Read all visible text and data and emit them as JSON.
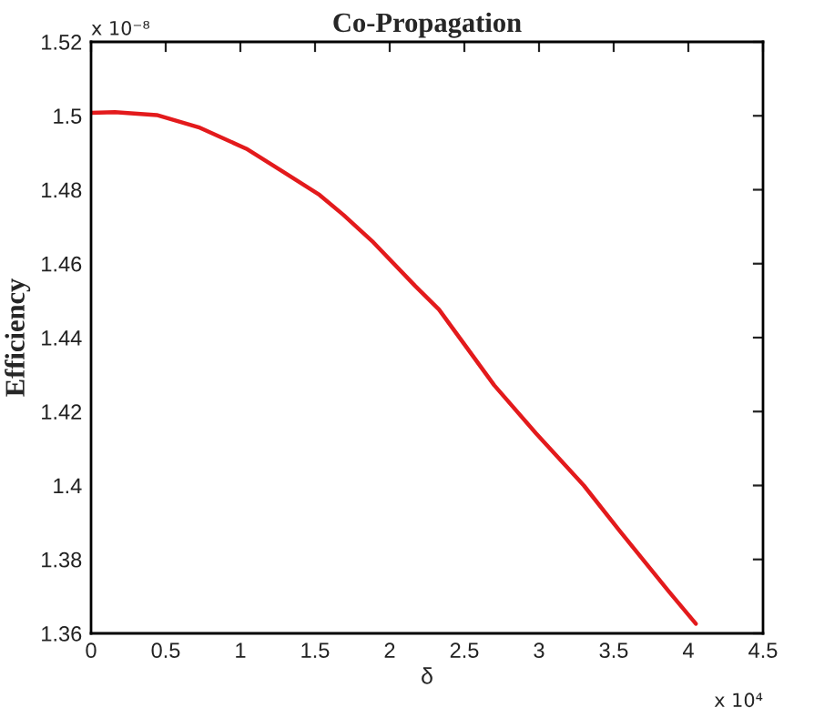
{
  "chart_data": {
    "type": "line",
    "title": "Co-Propagation",
    "xlabel": "δ",
    "ylabel": "Efficiency",
    "x": [
      0,
      0.16,
      0.44,
      0.72,
      1.04,
      1.28,
      1.53,
      1.69,
      1.89,
      2.17,
      2.33,
      2.7,
      2.98,
      3.3,
      3.54,
      3.87,
      4.05
    ],
    "series": [
      {
        "color": "#e31a1c",
        "values": [
          1.5008,
          1.501,
          1.5002,
          1.4969,
          1.4911,
          1.485,
          1.4786,
          1.4732,
          1.4658,
          1.454,
          1.4476,
          1.4271,
          1.4141,
          1.4,
          1.3877,
          1.3713,
          1.3626
        ]
      }
    ],
    "xlim": [
      0,
      4.5
    ],
    "xticks": [
      0,
      0.5,
      1,
      1.5,
      2,
      2.5,
      3,
      3.5,
      4,
      4.5
    ],
    "ylim": [
      1.36,
      1.52
    ],
    "yticks": [
      1.36,
      1.38,
      1.4,
      1.42,
      1.44,
      1.46,
      1.48,
      1.5,
      1.52
    ],
    "annotations": [
      "x 10⁻⁸",
      "x 10⁴"
    ],
    "grid": false,
    "legend": false,
    "marker": "none",
    "line_style": "solid"
  }
}
